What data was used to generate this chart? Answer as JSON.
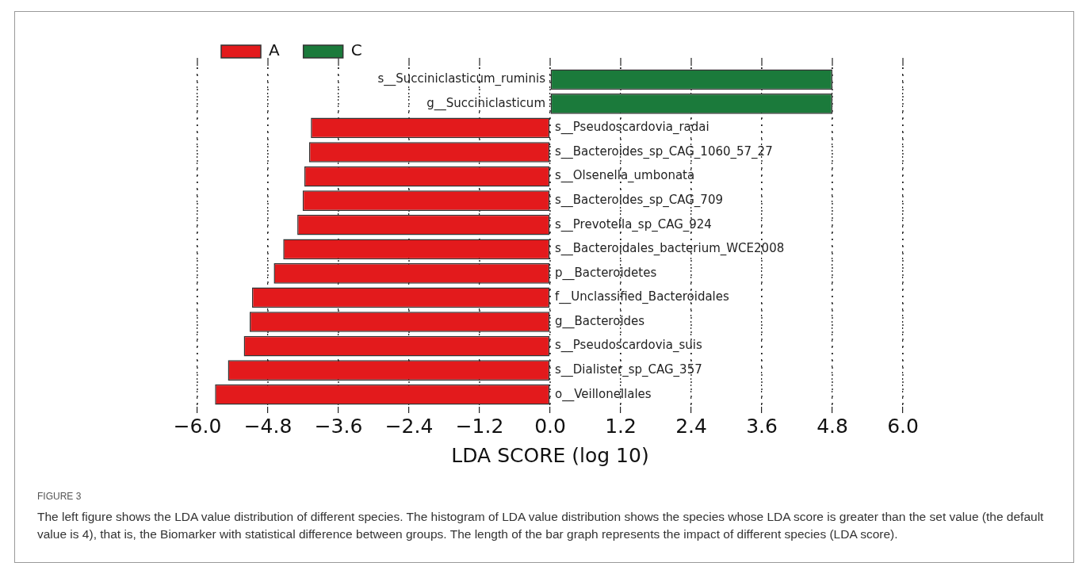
{
  "chart_data": {
    "type": "bar",
    "orientation": "horizontal",
    "xlabel": "LDA SCORE (log 10)",
    "categories": [
      "s__Succiniclasticum_ruminis",
      "g__Succiniclasticum",
      "s__Pseudoscardovia_radai",
      "s__Bacteroides_sp_CAG_1060_57_27",
      "s__Olsenella_umbonata",
      "s__Bacteroides_sp_CAG_709",
      "s__Prevotella_sp_CAG_924",
      "s__Bacteroidales_bacterium_WCE2008",
      "p__Bacteroidetes",
      "f__Unclassified_Bacteroidales",
      "g__Bacteroides",
      "s__Pseudoscardovia_suis",
      "s__Dialister_sp_CAG_357",
      "o__Veillonellales"
    ],
    "series": [
      {
        "name": "A",
        "color": "#e31a1c",
        "values": [
          null,
          null,
          -4.07,
          -4.1,
          -4.18,
          -4.21,
          -4.3,
          -4.54,
          -4.7,
          -5.07,
          -5.11,
          -5.21,
          -5.48,
          -5.7
        ]
      },
      {
        "name": "C",
        "color": "#1b7a3b",
        "values": [
          4.8,
          4.8,
          null,
          null,
          null,
          null,
          null,
          null,
          null,
          null,
          null,
          null,
          null,
          null
        ]
      }
    ],
    "xlim": [
      -6,
      6
    ],
    "xticks": [
      {
        "value": -6,
        "label": "−6.0"
      },
      {
        "value": -4.8,
        "label": "−4.8"
      },
      {
        "value": -3.6,
        "label": "−3.6"
      },
      {
        "value": -2.4,
        "label": "−2.4"
      },
      {
        "value": -1.2,
        "label": "−1.2"
      },
      {
        "value": 0,
        "label": "0.0"
      },
      {
        "value": 1.2,
        "label": "1.2"
      },
      {
        "value": 2.4,
        "label": "2.4"
      },
      {
        "value": 3.6,
        "label": "3.6"
      },
      {
        "value": 4.8,
        "label": "4.8"
      },
      {
        "value": 6,
        "label": "6.0"
      }
    ],
    "grid": "x",
    "legend": "top left",
    "annotations": [
      "FIGURE 3",
      "The left figure shows the LDA value distribution of different species. The histogram of LDA value distribution shows the species whose LDA score is greater than the set value (the default value is 4), that is, the Biomarker with statistical difference between groups. The length of the bar graph represents the impact of different species (LDA score)."
    ]
  }
}
